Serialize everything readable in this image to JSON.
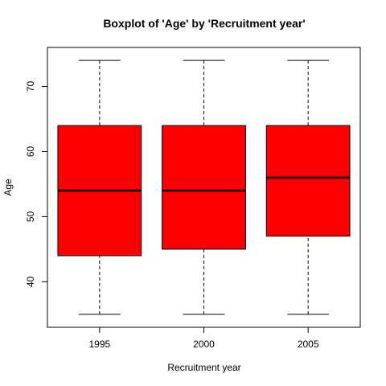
{
  "chart_data": {
    "type": "boxplot",
    "title": "Boxplot of 'Age' by 'Recruitment year'",
    "xlabel": "Recruitment year",
    "ylabel": "Age",
    "ylim": [
      33,
      76
    ],
    "yticks": [
      40,
      50,
      60,
      70
    ],
    "grid": false,
    "legend": "none",
    "box_color": "#ff0000",
    "categories": [
      "1995",
      "2000",
      "2005"
    ],
    "boxes": [
      {
        "category": "1995",
        "min": 35,
        "q1": 44,
        "median": 54,
        "q3": 64,
        "max": 74
      },
      {
        "category": "2000",
        "min": 35,
        "q1": 45,
        "median": 54,
        "q3": 64,
        "max": 74
      },
      {
        "category": "2005",
        "min": 35,
        "q1": 47,
        "median": 56,
        "q3": 64,
        "max": 74
      }
    ]
  }
}
